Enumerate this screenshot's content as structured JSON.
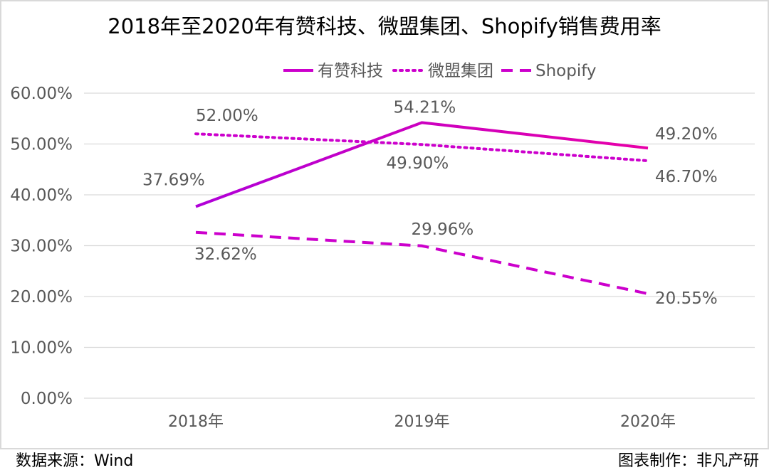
{
  "chart_data": {
    "type": "line",
    "title": "2018年至2020年有赞科技、微盟集团、Shopify销售费用率",
    "categories": [
      "2018年",
      "2019年",
      "2020年"
    ],
    "ylim": [
      0,
      60
    ],
    "yticks": [
      "0.00%",
      "10.00%",
      "20.00%",
      "30.00%",
      "40.00%",
      "50.00%",
      "60.00%"
    ],
    "grid": true,
    "legend_position": "top",
    "series": [
      {
        "name": "有赞科技",
        "style": "solid",
        "color": "#cc00cc",
        "values": [
          37.69,
          54.21,
          49.2
        ],
        "labels": [
          "37.69%",
          "54.21%",
          "49.20%"
        ]
      },
      {
        "name": "微盟集团",
        "style": "dotted",
        "color": "#cc00cc",
        "values": [
          52.0,
          49.9,
          46.7
        ],
        "labels": [
          "52.00%",
          "49.90%",
          "46.70%"
        ]
      },
      {
        "name": "Shopify",
        "style": "dashed",
        "color": "#cc00cc",
        "values": [
          32.62,
          29.96,
          20.55
        ],
        "labels": [
          "32.62%",
          "29.96%",
          "20.55%"
        ]
      }
    ]
  },
  "footer": {
    "source": "数据来源：Wind",
    "credit": "图表制作：非凡产研"
  }
}
